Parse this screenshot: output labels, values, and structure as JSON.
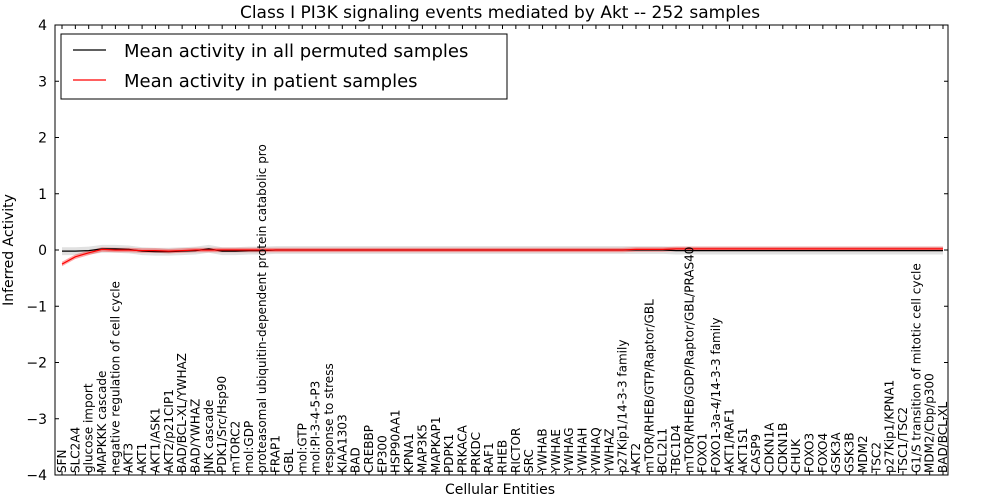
{
  "chart_data": {
    "type": "line",
    "title": "Class I PI3K signaling events mediated by Akt -- 252 samples",
    "xlabel": "Cellular Entities",
    "ylabel": "Inferred Activity",
    "ylim": [
      -4,
      4
    ],
    "yticks": [
      4,
      3,
      2,
      1,
      0,
      -1,
      -2,
      -3,
      -4
    ],
    "ytick_labels": [
      "4",
      "3",
      "2",
      "1",
      "0",
      "−1",
      "−2",
      "−3",
      "−4"
    ],
    "grid": false,
    "legend_position": "top-left",
    "categories": [
      "SFN",
      "SLC2A4",
      "glucose import",
      "MAPKKK cascade",
      "negative regulation of cell cycle",
      "AKT3",
      "AKT1",
      "AKT1/ASK1",
      "AKT2/p21CIP1",
      "BAD/BCL-XL/YWHAZ",
      "BAD/YWHAZ",
      "JNK cascade",
      "PDK1/Src/Hsp90",
      "mTORC2",
      "mol:GDP",
      "proteasomal ubiquitin-dependent protein catabolic pro",
      "FRAP1",
      "GBL",
      "mol:GTP",
      "mol:PI-3-4-5-P3",
      "response to stress",
      "KIAA1303",
      "BAD",
      "CREBBP",
      "EP300",
      "HSP90AA1",
      "KPNA1",
      "MAP3K5",
      "MAPKAP1",
      "PDPK1",
      "PRKACA",
      "PRKDC",
      "RAF1",
      "RHEB",
      "RICTOR",
      "SRC",
      "YWHAB",
      "YWHAE",
      "YWHAG",
      "YWHAH",
      "YWHAQ",
      "YWHAZ",
      "p27Kip1/14-3-3 family",
      "AKT2",
      "mTOR/RHEB/GTP/Raptor/GBL",
      "BCL2L1",
      "TBC1D4",
      "mTOR/RHEB/GDP/Raptor/GBL/PRAS40",
      "FOXO1",
      "FOXO1-3a-4/14-3-3 family",
      "AKT1/RAF1",
      "AKT1S1",
      "CASP9",
      "CDKN1A",
      "CDKN1B",
      "CHUK",
      "FOXO3",
      "FOXO4",
      "GSK3A",
      "GSK3B",
      "MDM2",
      "TSC2",
      "p27Kip1/KPNA1",
      "TSC1/TSC2",
      "G1/S transition of mitotic cell cycle",
      "MDM2/Cbp/p300",
      "BAD/BCL-XL"
    ],
    "series": [
      {
        "name": "Mean activity in all permuted samples",
        "color": "#000000",
        "values": [
          -0.02,
          -0.02,
          -0.01,
          0.02,
          0.02,
          0.01,
          -0.02,
          -0.03,
          -0.03,
          -0.02,
          -0.01,
          0.02,
          -0.02,
          -0.02,
          -0.01,
          -0.01,
          0,
          0,
          0,
          0,
          0,
          0,
          0,
          0,
          0,
          0,
          0,
          0,
          0,
          0,
          0,
          0,
          0,
          0,
          0,
          0,
          0,
          0,
          0,
          0,
          0,
          0,
          0,
          0,
          0,
          0,
          -0.01,
          -0.01,
          -0.01,
          -0.01,
          -0.01,
          -0.01,
          -0.01,
          -0.01,
          -0.01,
          -0.01,
          -0.01,
          -0.01,
          -0.01,
          -0.01,
          -0.01,
          -0.01,
          -0.01,
          -0.01,
          -0.01,
          -0.01,
          -0.01
        ],
        "band": 0.07
      },
      {
        "name": "Mean activity in patient samples",
        "color": "#ff0000",
        "values": [
          -0.25,
          -0.12,
          -0.05,
          0.01,
          0.0,
          0.0,
          -0.01,
          -0.01,
          -0.02,
          -0.01,
          0.0,
          0.0,
          0.0,
          0.0,
          0.0,
          0.0,
          0.0,
          0.0,
          0.0,
          0.0,
          0.0,
          0.0,
          0.0,
          0.0,
          0.0,
          0.0,
          0.0,
          0.0,
          0.0,
          0.0,
          0.0,
          0.0,
          0.0,
          0.0,
          0.0,
          0.0,
          0.0,
          0.0,
          0.0,
          0.0,
          0.0,
          0.0,
          0.0,
          0.01,
          0.01,
          0.01,
          0.02,
          0.02,
          0.02,
          0.02,
          0.02,
          0.02,
          0.02,
          0.02,
          0.02,
          0.02,
          0.02,
          0.02,
          0.02,
          0.02,
          0.02,
          0.02,
          0.02,
          0.02,
          0.02,
          0.02,
          0.02
        ],
        "band": 0.04
      }
    ]
  }
}
